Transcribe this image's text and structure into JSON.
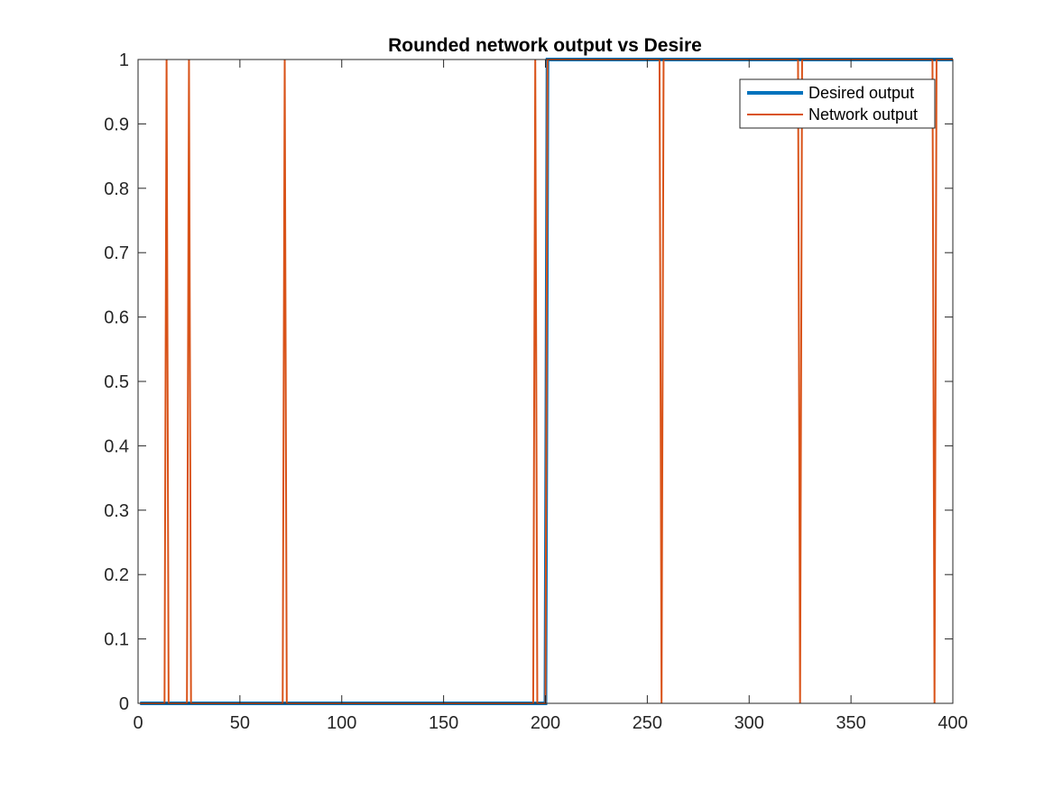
{
  "chart_data": {
    "type": "line",
    "title": "Rounded network output vs Desire",
    "xlabel": "",
    "ylabel": "",
    "xlim": [
      0,
      400
    ],
    "ylim": [
      0,
      1
    ],
    "xticks": [
      0,
      50,
      100,
      150,
      200,
      250,
      300,
      350,
      400
    ],
    "xtick_labels": [
      "0",
      "50",
      "100",
      "150",
      "200",
      "250",
      "300",
      "350",
      "400"
    ],
    "yticks": [
      0,
      0.1,
      0.2,
      0.3,
      0.4,
      0.5,
      0.6,
      0.7,
      0.8,
      0.9,
      1
    ],
    "ytick_labels": [
      "0",
      "0.1",
      "0.2",
      "0.3",
      "0.4",
      "0.5",
      "0.6",
      "0.7",
      "0.8",
      "0.9",
      "1"
    ],
    "grid": false,
    "legend": {
      "position": "top-right"
    },
    "series": [
      {
        "name": "Desired output",
        "color": "#0072BD",
        "x": [
          1,
          200,
          201,
          400
        ],
        "y": [
          0,
          0,
          1,
          1
        ]
      },
      {
        "name": "Network output",
        "color": "#D95319",
        "x": [
          1,
          13,
          14,
          15,
          24,
          25,
          26,
          71,
          72,
          73,
          194,
          195,
          196,
          200,
          201,
          256,
          257,
          258,
          324,
          325,
          326,
          390,
          391,
          392,
          400
        ],
        "y": [
          0,
          0,
          1,
          0,
          0,
          1,
          0,
          0,
          1,
          0,
          0,
          1,
          0,
          0,
          1,
          1,
          0,
          1,
          1,
          0,
          1,
          1,
          0,
          1,
          1
        ]
      }
    ]
  }
}
